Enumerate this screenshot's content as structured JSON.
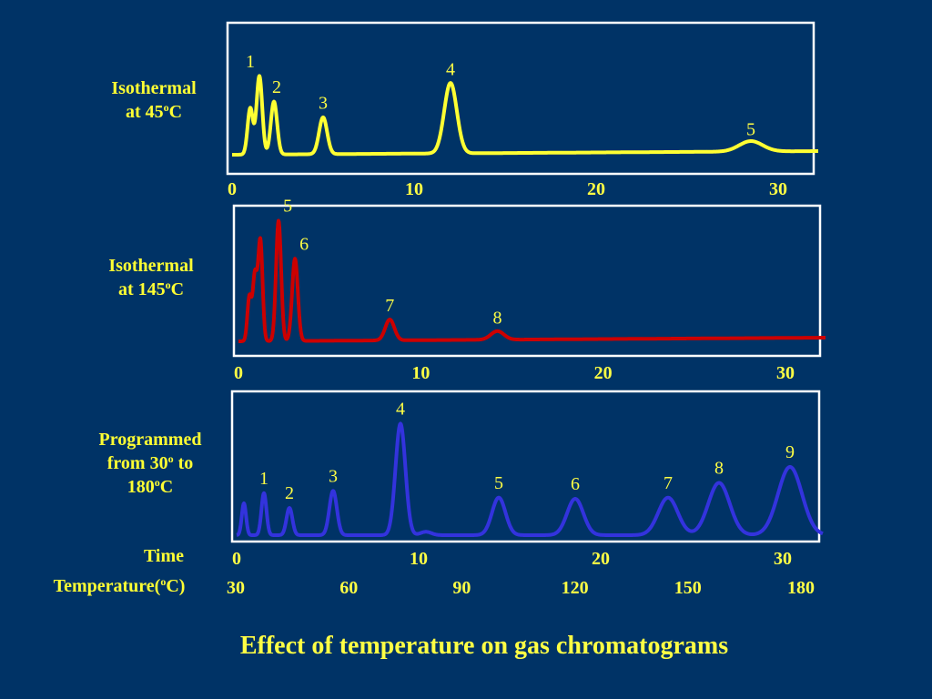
{
  "title": "Effect of temperature on gas chromatograms",
  "chart_data": [
    {
      "type": "line",
      "id": "isothermal-45",
      "color": "#ffff33",
      "label_line1": "Isothermal",
      "label_line2_prefix": "at 45",
      "label_line2_sup": "o",
      "label_line2_suffix": "C",
      "xlim": [
        0,
        32
      ],
      "x_ticks": [
        "0",
        "10",
        "20",
        "30"
      ],
      "peaks": [
        {
          "label": "",
          "x": 1.0,
          "height": 0.58
        },
        {
          "label": "1",
          "x": 1.5,
          "height": 0.98
        },
        {
          "label": "2",
          "x": 2.3,
          "height": 0.66
        },
        {
          "label": "3",
          "x": 5.0,
          "height": 0.46
        },
        {
          "label": "4",
          "x": 12.0,
          "height": 0.88
        },
        {
          "label": "5",
          "x": 28.5,
          "height": 0.13
        }
      ]
    },
    {
      "type": "line",
      "id": "isothermal-145",
      "color": "#cc0000",
      "label_line1": "Isothermal",
      "label_line2_prefix": "at 145",
      "label_line2_sup": "o",
      "label_line2_suffix": "C",
      "xlim": [
        0,
        32
      ],
      "x_ticks": [
        "0",
        "10",
        "20",
        "30"
      ],
      "peaks": [
        {
          "label": "",
          "x": 0.6,
          "height": 0.36
        },
        {
          "label": "",
          "x": 0.9,
          "height": 0.53
        },
        {
          "label": "",
          "x": 1.2,
          "height": 0.82
        },
        {
          "label": "5",
          "x": 2.2,
          "height": 0.98
        },
        {
          "label": "6",
          "x": 3.1,
          "height": 0.67
        },
        {
          "label": "7",
          "x": 8.3,
          "height": 0.17
        },
        {
          "label": "8",
          "x": 14.2,
          "height": 0.07
        }
      ]
    },
    {
      "type": "line",
      "id": "programmed",
      "color": "#3333dd",
      "label_line1": "Programmed",
      "label_line2_prefix": "from 30",
      "label_line2_sup": "o",
      "label_line2_suffix": " to",
      "label_line3_prefix": "180",
      "label_line3_sup": "o",
      "label_line3_suffix": "C",
      "xlim": [
        0,
        32
      ],
      "x_ticks": [
        "0",
        "10",
        "20",
        "30"
      ],
      "temperature_ticks": [
        "30",
        "60",
        "90",
        "120",
        "150",
        "180"
      ],
      "peaks": [
        {
          "label": "",
          "x": 0.4,
          "height": 0.28
        },
        {
          "label": "1",
          "x": 1.5,
          "height": 0.37
        },
        {
          "label": "2",
          "x": 2.9,
          "height": 0.24
        },
        {
          "label": "3",
          "x": 5.3,
          "height": 0.39
        },
        {
          "label": "4",
          "x": 9.0,
          "height": 0.98
        },
        {
          "label": "",
          "x": 10.4,
          "height": 0.03
        },
        {
          "label": "5",
          "x": 14.4,
          "height": 0.33
        },
        {
          "label": "6",
          "x": 18.6,
          "height": 0.32
        },
        {
          "label": "7",
          "x": 23.7,
          "height": 0.33
        },
        {
          "label": "8",
          "x": 26.5,
          "height": 0.46
        },
        {
          "label": "9",
          "x": 30.4,
          "height": 0.6
        }
      ]
    }
  ],
  "axis_labels": {
    "time": "Time",
    "temperature_prefix": "Temperature(",
    "temperature_sup": "o",
    "temperature_suffix": "C)"
  }
}
